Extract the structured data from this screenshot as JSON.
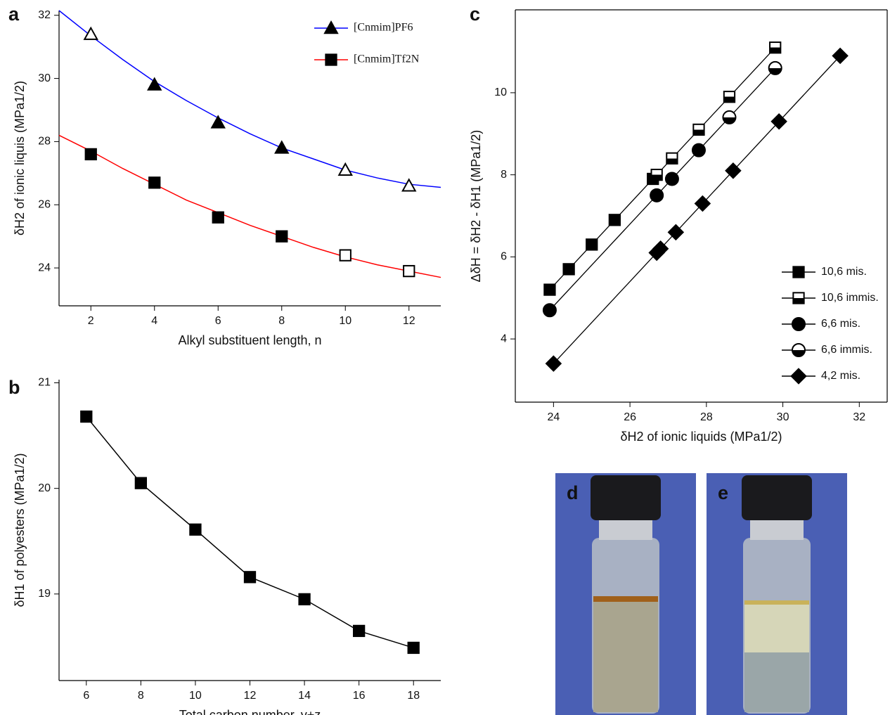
{
  "chart_data": [
    {
      "type": "line",
      "panel": "a",
      "xlabel": "Alkyl substituent length, n",
      "ylabel": "δH2 of ionic liquis (MPa1/2)",
      "x": [
        2,
        4,
        6,
        8,
        10,
        12
      ],
      "fit_x": [
        1,
        2,
        3,
        4,
        5,
        6,
        7,
        8,
        9,
        10,
        11,
        12,
        13
      ],
      "xlim": [
        1,
        13
      ],
      "ylim": [
        22.8,
        32.15
      ],
      "xticks": [
        2,
        4,
        6,
        8,
        10,
        12
      ],
      "yticks": [
        24,
        26,
        28,
        30,
        32
      ],
      "legend": "upper right",
      "marker_color": "#000000",
      "series": [
        {
          "name": "[Cnmim]PF6",
          "color": "#0000ff",
          "marker": "triangle",
          "values": [
            31.4,
            29.8,
            28.6,
            27.8,
            27.1,
            26.6
          ],
          "filled": [
            false,
            true,
            true,
            true,
            false,
            false
          ],
          "fit": [
            32.15,
            31.35,
            30.6,
            29.9,
            29.3,
            28.75,
            28.25,
            27.8,
            27.45,
            27.1,
            26.85,
            26.65,
            26.55
          ]
        },
        {
          "name": "[Cnmim]Tf2N",
          "color": "#ff0000",
          "marker": "square",
          "values": [
            27.6,
            26.7,
            25.6,
            25.0,
            24.4,
            23.9
          ],
          "filled": [
            true,
            true,
            true,
            true,
            false,
            false
          ],
          "fit": [
            28.2,
            27.7,
            27.15,
            26.65,
            26.15,
            25.75,
            25.35,
            25.0,
            24.65,
            24.35,
            24.1,
            23.9,
            23.7
          ]
        }
      ]
    },
    {
      "type": "line",
      "panel": "b",
      "xlabel": "Total carbon number, y+z",
      "ylabel": "δH1 of polyesters (MPa1/2)",
      "x": [
        6,
        8,
        10,
        12,
        14,
        16,
        18
      ],
      "xlim": [
        5,
        19
      ],
      "ylim": [
        18.18,
        21.03
      ],
      "xticks": [
        6,
        8,
        10,
        12,
        14,
        16,
        18
      ],
      "yticks": [
        19,
        20,
        21
      ],
      "marker_color": "#000000",
      "series": [
        {
          "color": "#000000",
          "marker": "square",
          "values": [
            20.68,
            20.05,
            19.61,
            19.16,
            18.95,
            18.65,
            18.49
          ]
        }
      ]
    },
    {
      "type": "scatter",
      "panel": "c",
      "xlabel": "δH2 of ionic liquids (MPa1/2)",
      "ylabel": "ΔδH = δH2 - δH1 (MPa1/2)",
      "xlim": [
        23,
        32.73
      ],
      "ylim": [
        2.46,
        12.02
      ],
      "xticks": [
        24,
        26,
        28,
        30,
        32
      ],
      "yticks": [
        4,
        6,
        8,
        10
      ],
      "box": true,
      "legend": "lower right",
      "marker_color": "#000000",
      "fit_lines": [
        {
          "x": [
            23.9,
            29.8
          ],
          "values": [
            5.2,
            11.1
          ]
        },
        {
          "x": [
            23.9,
            29.8
          ],
          "values": [
            4.7,
            10.6
          ]
        },
        {
          "x": [
            24,
            31.5
          ],
          "values": [
            3.4,
            10.9
          ]
        }
      ],
      "series": [
        {
          "name": "10,6 mis.",
          "color": "#000000",
          "marker": "square",
          "x": [
            23.9,
            24.4,
            25,
            25.6,
            26.6
          ],
          "values": [
            5.2,
            5.7,
            6.3,
            6.9,
            7.9
          ]
        },
        {
          "name": "10,6 immis.",
          "color": "#000000",
          "marker": "square-half",
          "x": [
            26.7,
            27.1,
            27.8,
            28.6,
            29.8
          ],
          "values": [
            8.0,
            8.4,
            9.1,
            9.9,
            11.1
          ]
        },
        {
          "name": "6,6 mis.",
          "color": "#000000",
          "marker": "circle",
          "x": [
            23.9,
            26.7,
            27.1,
            27.8
          ],
          "values": [
            4.7,
            7.5,
            7.9,
            8.6
          ]
        },
        {
          "name": "6,6 immis.",
          "color": "#000000",
          "marker": "circle-half",
          "x": [
            28.6,
            29.8
          ],
          "values": [
            9.4,
            10.6
          ]
        },
        {
          "name": "4,2 mis.",
          "color": "#000000",
          "marker": "diamond",
          "x": [
            24,
            26.7,
            26.8,
            27.2,
            27.9,
            28.7,
            29.9,
            31.5
          ],
          "values": [
            3.4,
            6.1,
            6.2,
            6.6,
            7.3,
            8.1,
            9.3,
            10.9
          ]
        }
      ]
    }
  ],
  "photos": [
    {
      "panel": "d"
    },
    {
      "panel": "e"
    }
  ]
}
